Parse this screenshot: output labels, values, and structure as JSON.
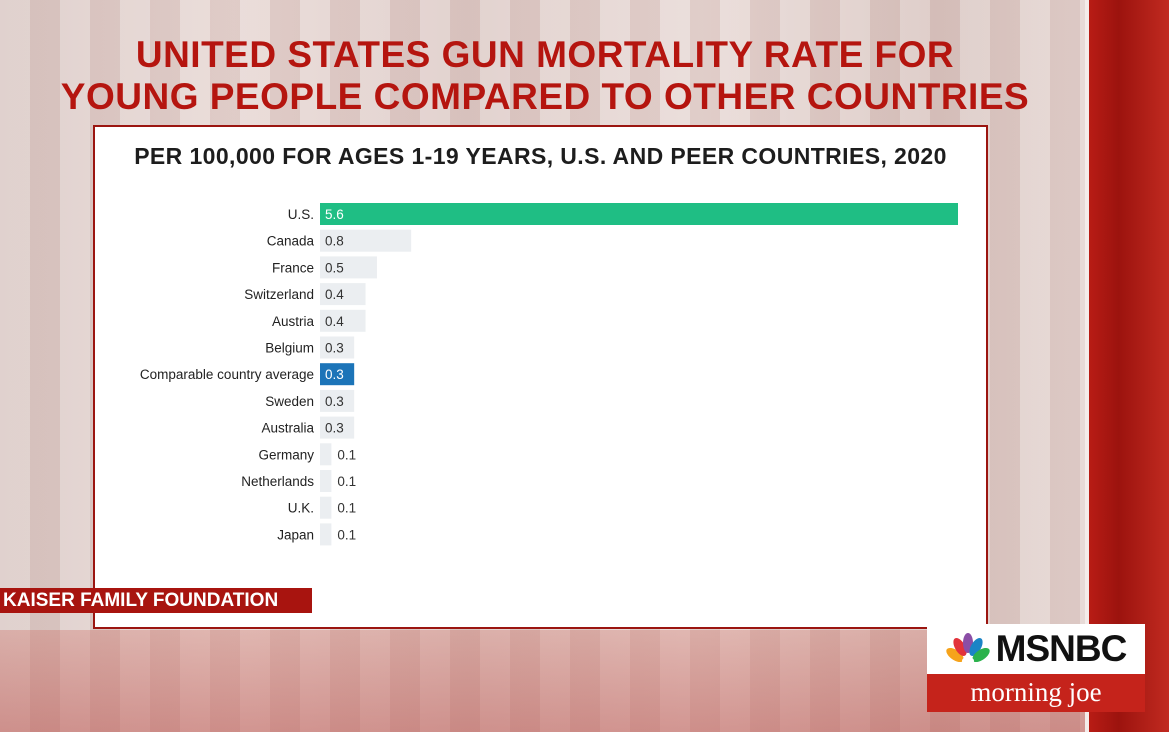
{
  "headline": {
    "line1": "UNITED STATES GUN MORTALITY RATE FOR",
    "line2": "YOUNG PEOPLE COMPARED TO OTHER COUNTRIES"
  },
  "chart_data": {
    "type": "bar",
    "orientation": "horizontal",
    "title": "PER 100,000 FOR AGES 1-19 YEARS, U.S. AND PEER COUNTRIES, 2020",
    "categories": [
      "U.S.",
      "Canada",
      "France",
      "Switzerland",
      "Austria",
      "Belgium",
      "Comparable country average",
      "Sweden",
      "Australia",
      "Germany",
      "Netherlands",
      "U.K.",
      "Japan"
    ],
    "values": [
      5.6,
      0.8,
      0.5,
      0.4,
      0.4,
      0.3,
      0.3,
      0.3,
      0.3,
      0.1,
      0.1,
      0.1,
      0.1
    ],
    "data_labels": [
      "5.6",
      "0.8",
      "0.5",
      "0.4",
      "0.4",
      "0.3",
      "0.3",
      "0.3",
      "0.3",
      "0.1",
      "0.1",
      "0.1",
      "0.1"
    ],
    "xlim": [
      0,
      5.6
    ],
    "grid": false,
    "colors": {
      "U.S.": "#1fbe84",
      "Comparable country average": "#1c74b8",
      "default": "#ebeef1"
    }
  },
  "source": "KAISER FAMILY FOUNDATION",
  "logo": {
    "network": "MSNBC",
    "show": "morning joe"
  },
  "colors": {
    "headline_red": "#b5150f",
    "card_border": "#9b1510",
    "source_bg": "#a8140f",
    "logo_red": "#c5231b"
  }
}
